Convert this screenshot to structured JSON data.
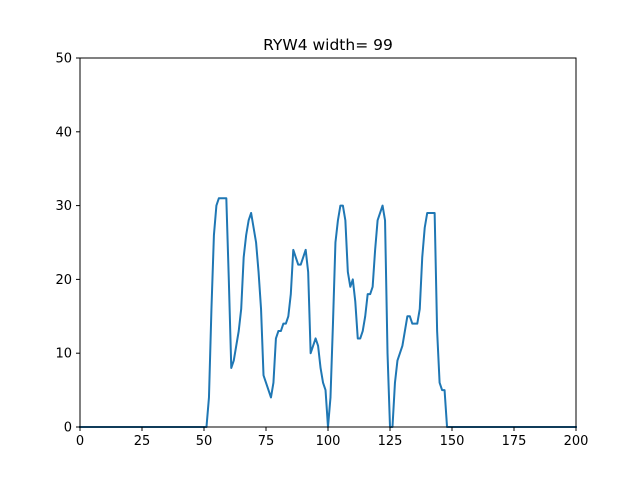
{
  "chart_data": {
    "type": "line",
    "title": "RYW4 width= 99",
    "xlabel": "",
    "ylabel": "",
    "xlim": [
      0,
      200
    ],
    "ylim": [
      0,
      50
    ],
    "xticks": [
      0,
      25,
      50,
      75,
      100,
      125,
      150,
      175,
      200
    ],
    "yticks": [
      0,
      10,
      20,
      30,
      40,
      50
    ],
    "grid": false,
    "colors": {
      "line": "#1f77b4",
      "axes": "#000000",
      "background": "#ffffff"
    },
    "series": [
      {
        "x": [
          0,
          51,
          52,
          53,
          54,
          55,
          56,
          57,
          58,
          59,
          60,
          61,
          62,
          63,
          64,
          65,
          66,
          67,
          68,
          69,
          70,
          71,
          72,
          73,
          74,
          75,
          76,
          77,
          78,
          79,
          80,
          81,
          82,
          83,
          84,
          85,
          86,
          87,
          88,
          89,
          90,
          91,
          92,
          93,
          94,
          95,
          96,
          97,
          98,
          99,
          100,
          101,
          102,
          103,
          104,
          105,
          106,
          107,
          108,
          109,
          110,
          111,
          112,
          113,
          114,
          115,
          116,
          117,
          118,
          119,
          120,
          121,
          122,
          123,
          124,
          125,
          126,
          127,
          128,
          129,
          130,
          131,
          132,
          133,
          134,
          135,
          136,
          137,
          138,
          139,
          140,
          141,
          142,
          143,
          144,
          145,
          146,
          147,
          148,
          149,
          150,
          200
        ],
        "y": [
          0,
          0,
          4,
          16,
          26,
          30,
          31,
          31,
          31,
          31,
          20,
          8,
          9,
          11,
          13,
          16,
          23,
          26,
          28,
          29,
          27,
          25,
          21,
          16,
          7,
          6,
          5,
          4,
          6,
          12,
          13,
          13,
          14,
          14,
          15,
          18,
          24,
          23,
          22,
          22,
          23,
          24,
          21,
          10,
          11,
          12,
          11,
          8,
          6,
          5,
          0,
          4,
          14,
          25,
          28,
          30,
          30,
          28,
          21,
          19,
          20,
          17,
          12,
          12,
          13,
          15,
          18,
          18,
          19,
          24,
          28,
          29,
          30,
          28,
          10,
          0,
          0,
          6,
          9,
          10,
          11,
          13,
          15,
          15,
          14,
          14,
          14,
          16,
          23,
          27,
          29,
          29,
          29,
          29,
          13,
          6,
          5,
          5,
          0,
          0,
          0,
          0
        ]
      }
    ]
  }
}
